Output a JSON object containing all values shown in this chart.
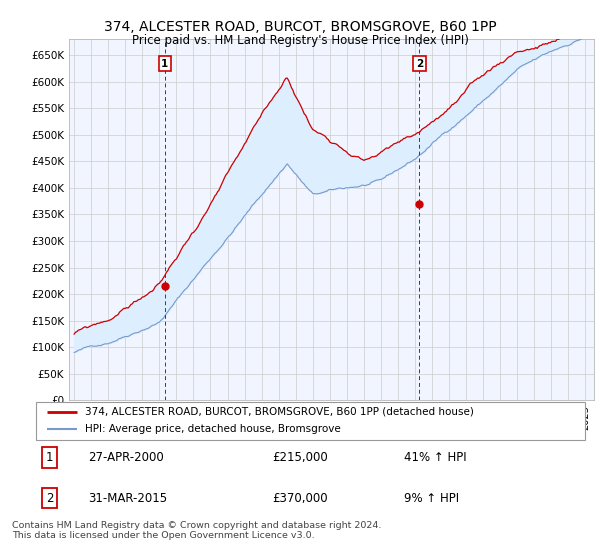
{
  "title1": "374, ALCESTER ROAD, BURCOT, BROMSGROVE, B60 1PP",
  "title2": "Price paid vs. HM Land Registry's House Price Index (HPI)",
  "ylabel_ticks": [
    "£0",
    "£50K",
    "£100K",
    "£150K",
    "£200K",
    "£250K",
    "£300K",
    "£350K",
    "£400K",
    "£450K",
    "£500K",
    "£550K",
    "£600K",
    "£650K"
  ],
  "ytick_values": [
    0,
    50000,
    100000,
    150000,
    200000,
    250000,
    300000,
    350000,
    400000,
    450000,
    500000,
    550000,
    600000,
    650000
  ],
  "line1_color": "#cc0000",
  "line2_color": "#7799cc",
  "fill_color": "#ddeeff",
  "purchase1_date": 2000.32,
  "purchase1_price": 215000,
  "purchase2_date": 2015.25,
  "purchase2_price": 370000,
  "legend_line1": "374, ALCESTER ROAD, BURCOT, BROMSGROVE, B60 1PP (detached house)",
  "legend_line2": "HPI: Average price, detached house, Bromsgrove",
  "label1_date": "27-APR-2000",
  "label1_price": "£215,000",
  "label1_hpi": "41% ↑ HPI",
  "label2_date": "31-MAR-2015",
  "label2_price": "£370,000",
  "label2_hpi": "9% ↑ HPI",
  "footer": "Contains HM Land Registry data © Crown copyright and database right 2024.\nThis data is licensed under the Open Government Licence v3.0.",
  "background_color": "#ffffff",
  "grid_color": "#cccccc",
  "chart_bg": "#f0f5ff"
}
